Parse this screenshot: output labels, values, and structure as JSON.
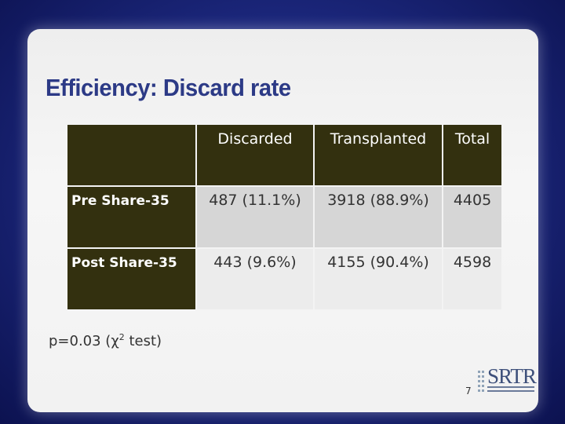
{
  "slide": {
    "title": "Efficiency: Discard rate",
    "page_number": "7"
  },
  "table": {
    "columns": [
      "Discarded",
      "Transplanted",
      "Total"
    ],
    "rows": [
      {
        "label": "Pre Share-35",
        "cells": [
          "487 (11.1%)",
          "3918 (88.9%)",
          "4405"
        ]
      },
      {
        "label": "Post Share-35",
        "cells": [
          "443 (9.6%)",
          "4155 (90.4%)",
          "4598"
        ]
      }
    ]
  },
  "footnote": {
    "prefix": "p=0.03 (χ",
    "sup": "2",
    "suffix": " test)"
  },
  "logo": {
    "name": "SRTR",
    "icon": "srtr-logo"
  },
  "colors": {
    "title": "#2c3a86",
    "table_header_bg": "#33300f",
    "row1_bg": "#d6d6d6",
    "row2_bg": "#ececec",
    "background": "#1a2578"
  }
}
